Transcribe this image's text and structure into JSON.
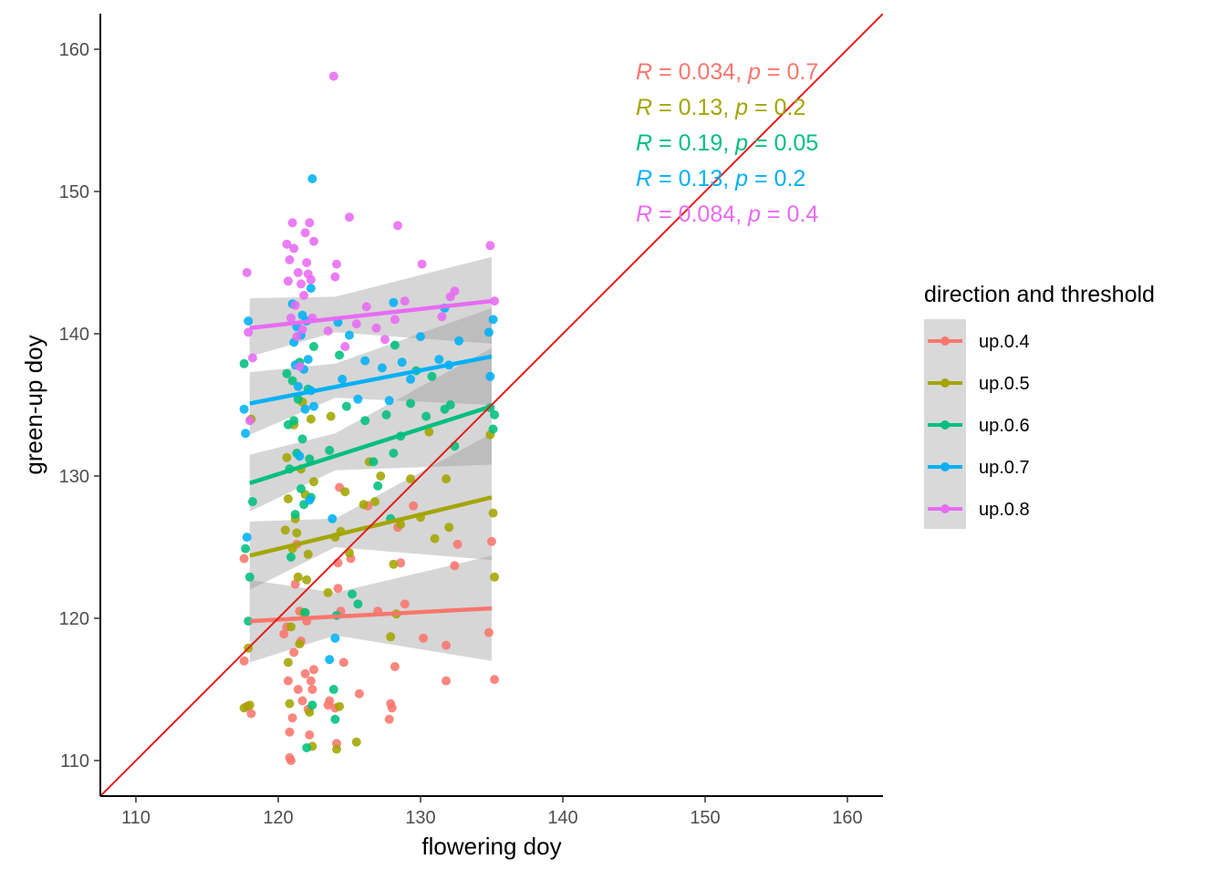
{
  "chart_data": {
    "type": "scatter",
    "title": "",
    "xlabel": "flowering doy",
    "ylabel": "green-up doy",
    "xlim": [
      107.5,
      162.5
    ],
    "ylim": [
      107.5,
      162.5
    ],
    "xticks": [
      "110",
      "120",
      "130",
      "140",
      "150",
      "160"
    ],
    "yticks": [
      "110",
      "120",
      "130",
      "140",
      "150",
      "160"
    ],
    "grid": false,
    "legend": {
      "title": "direction and threshold",
      "placement": "right",
      "entries": [
        "up.0.4",
        "up.0.5",
        "up.0.6",
        "up.0.7",
        "up.0.8"
      ]
    },
    "reference_line": {
      "kind": "identity y = x",
      "color": "#E41A1C"
    },
    "series": [
      {
        "name": "up.0.4",
        "color": "#F8766D",
        "trend": {
          "x": [
            118,
            135
          ],
          "y": [
            119.8,
            120.7
          ],
          "band": [
            [
              118,
              116.9,
              122.7
            ],
            [
              124,
              118.8,
              121.8
            ],
            [
              135,
              117.0,
              124.4
            ]
          ]
        },
        "stats": {
          "R": "0.034",
          "p": "0.7"
        },
        "points": [
          [
            117.6,
            124.2
          ],
          [
            117.6,
            117.0
          ],
          [
            117.8,
            113.8
          ],
          [
            118.1,
            113.3
          ],
          [
            120.4,
            118.9
          ],
          [
            120.6,
            119.4
          ],
          [
            120.7,
            115.6
          ],
          [
            120.8,
            112.0
          ],
          [
            120.8,
            110.2
          ],
          [
            120.9,
            110.0
          ],
          [
            121.0,
            113.0
          ],
          [
            121.1,
            117.6
          ],
          [
            121.2,
            122.4
          ],
          [
            121.3,
            125.2
          ],
          [
            121.4,
            115.0
          ],
          [
            121.5,
            120.5
          ],
          [
            121.6,
            118.4
          ],
          [
            121.7,
            114.2
          ],
          [
            121.9,
            116.1
          ],
          [
            122.0,
            119.8
          ],
          [
            122.1,
            113.6
          ],
          [
            122.2,
            111.8
          ],
          [
            122.3,
            115.6
          ],
          [
            122.4,
            115.0
          ],
          [
            122.5,
            116.4
          ],
          [
            123.5,
            113.9
          ],
          [
            123.6,
            114.2
          ],
          [
            124.0,
            113.7
          ],
          [
            124.1,
            111.2
          ],
          [
            124.2,
            123.9
          ],
          [
            124.2,
            122.1
          ],
          [
            124.3,
            129.2
          ],
          [
            124.4,
            120.5
          ],
          [
            124.6,
            116.9
          ],
          [
            125.1,
            124.2
          ],
          [
            125.7,
            114.7
          ],
          [
            126.3,
            127.9
          ],
          [
            127.0,
            120.5
          ],
          [
            127.8,
            112.9
          ],
          [
            127.9,
            114.0
          ],
          [
            128.0,
            113.7
          ],
          [
            128.2,
            116.6
          ],
          [
            128.4,
            126.4
          ],
          [
            128.6,
            123.9
          ],
          [
            128.9,
            121.0
          ],
          [
            129.5,
            127.9
          ],
          [
            130.2,
            118.6
          ],
          [
            131.8,
            118.1
          ],
          [
            131.8,
            115.6
          ],
          [
            132.4,
            123.7
          ],
          [
            132.6,
            125.2
          ],
          [
            134.8,
            119.0
          ],
          [
            135.0,
            125.4
          ],
          [
            135.2,
            115.7
          ]
        ]
      },
      {
        "name": "up.0.5",
        "color": "#A3A500",
        "trend": {
          "x": [
            118,
            135
          ],
          "y": [
            124.4,
            128.5
          ],
          "band": [
            [
              118,
              122.0,
              126.8
            ],
            [
              124,
              125.0,
              127.0
            ],
            [
              135,
              124.1,
              133.0
            ]
          ]
        },
        "stats": {
          "R": "0.13",
          "p": "0.2"
        },
        "points": [
          [
            117.6,
            113.7
          ],
          [
            117.9,
            117.9
          ],
          [
            118.0,
            113.9
          ],
          [
            118.1,
            134.0
          ],
          [
            120.5,
            126.2
          ],
          [
            120.6,
            131.3
          ],
          [
            120.7,
            128.4
          ],
          [
            120.7,
            116.9
          ],
          [
            120.8,
            114.0
          ],
          [
            120.9,
            119.4
          ],
          [
            121.0,
            124.9
          ],
          [
            121.1,
            133.6
          ],
          [
            121.2,
            127.0
          ],
          [
            121.3,
            126.0
          ],
          [
            121.4,
            122.9
          ],
          [
            121.5,
            118.2
          ],
          [
            121.6,
            130.5
          ],
          [
            121.7,
            135.2
          ],
          [
            121.8,
            120.4
          ],
          [
            121.9,
            128.7
          ],
          [
            122.0,
            122.7
          ],
          [
            122.1,
            124.5
          ],
          [
            122.2,
            113.4
          ],
          [
            122.3,
            134.0
          ],
          [
            122.4,
            111.0
          ],
          [
            122.5,
            129.6
          ],
          [
            123.5,
            121.8
          ],
          [
            123.7,
            134.2
          ],
          [
            124.0,
            125.7
          ],
          [
            124.1,
            110.8
          ],
          [
            124.3,
            113.8
          ],
          [
            124.4,
            126.1
          ],
          [
            124.7,
            128.9
          ],
          [
            125.0,
            124.6
          ],
          [
            125.5,
            111.3
          ],
          [
            126.0,
            128.0
          ],
          [
            126.4,
            131.0
          ],
          [
            126.8,
            128.2
          ],
          [
            127.2,
            130.0
          ],
          [
            127.9,
            118.7
          ],
          [
            128.1,
            123.8
          ],
          [
            128.3,
            120.3
          ],
          [
            128.6,
            126.6
          ],
          [
            129.3,
            129.8
          ],
          [
            130.0,
            127.1
          ],
          [
            130.6,
            133.1
          ],
          [
            131.0,
            125.6
          ],
          [
            131.8,
            129.8
          ],
          [
            132.0,
            126.4
          ],
          [
            134.9,
            132.9
          ],
          [
            135.1,
            127.4
          ],
          [
            135.2,
            122.9
          ]
        ]
      },
      {
        "name": "up.0.6",
        "color": "#00BF7D",
        "trend": {
          "x": [
            118,
            135
          ],
          "y": [
            129.5,
            134.9
          ],
          "band": [
            [
              118,
              127.5,
              131.5
            ],
            [
              124,
              130.4,
              133.0
            ],
            [
              135,
              130.8,
              139.0
            ]
          ]
        },
        "stats": {
          "R": "0.19",
          "p": "0.05"
        },
        "points": [
          [
            117.6,
            137.9
          ],
          [
            117.7,
            124.9
          ],
          [
            117.9,
            119.8
          ],
          [
            118.0,
            122.9
          ],
          [
            118.2,
            128.2
          ],
          [
            120.6,
            137.2
          ],
          [
            120.7,
            133.6
          ],
          [
            120.8,
            130.5
          ],
          [
            120.9,
            124.3
          ],
          [
            121.0,
            136.7
          ],
          [
            121.1,
            133.9
          ],
          [
            121.2,
            127.3
          ],
          [
            121.3,
            131.6
          ],
          [
            121.4,
            135.4
          ],
          [
            121.5,
            138.0
          ],
          [
            121.6,
            129.1
          ],
          [
            121.7,
            132.6
          ],
          [
            121.8,
            128.0
          ],
          [
            121.9,
            120.4
          ],
          [
            122.0,
            110.9
          ],
          [
            122.1,
            136.1
          ],
          [
            122.2,
            131.2
          ],
          [
            122.3,
            128.5
          ],
          [
            122.4,
            113.9
          ],
          [
            122.5,
            139.1
          ],
          [
            123.6,
            131.8
          ],
          [
            123.9,
            115.0
          ],
          [
            124.0,
            112.9
          ],
          [
            124.1,
            120.2
          ],
          [
            124.3,
            138.5
          ],
          [
            124.8,
            134.9
          ],
          [
            125.2,
            121.7
          ],
          [
            125.6,
            121.0
          ],
          [
            126.1,
            133.9
          ],
          [
            126.7,
            131.0
          ],
          [
            127.0,
            129.3
          ],
          [
            127.6,
            134.3
          ],
          [
            127.9,
            127.0
          ],
          [
            128.1,
            131.6
          ],
          [
            128.2,
            139.2
          ],
          [
            128.6,
            132.8
          ],
          [
            129.3,
            135.1
          ],
          [
            129.7,
            137.4
          ],
          [
            130.4,
            134.2
          ],
          [
            130.8,
            137.0
          ],
          [
            131.7,
            134.7
          ],
          [
            132.1,
            135.0
          ],
          [
            132.4,
            132.1
          ],
          [
            134.9,
            134.8
          ],
          [
            135.1,
            133.3
          ],
          [
            135.2,
            134.3
          ]
        ]
      },
      {
        "name": "up.0.7",
        "color": "#00B0F6",
        "trend": {
          "x": [
            118,
            135
          ],
          "y": [
            135.1,
            138.4
          ],
          "band": [
            [
              118,
              132.9,
              137.3
            ],
            [
              124,
              135.5,
              137.9
            ],
            [
              135,
              135.0,
              141.8
            ]
          ]
        },
        "stats": {
          "R": "0.13",
          "p": "0.2"
        },
        "points": [
          [
            117.6,
            134.7
          ],
          [
            117.7,
            133.0
          ],
          [
            117.8,
            125.7
          ],
          [
            117.9,
            140.9
          ],
          [
            121.0,
            142.1
          ],
          [
            121.1,
            139.4
          ],
          [
            121.2,
            137.8
          ],
          [
            121.3,
            140.5
          ],
          [
            121.4,
            136.3
          ],
          [
            121.5,
            131.4
          ],
          [
            121.6,
            139.9
          ],
          [
            121.7,
            141.3
          ],
          [
            121.8,
            137.5
          ],
          [
            121.9,
            134.7
          ],
          [
            122.0,
            140.9
          ],
          [
            122.1,
            138.2
          ],
          [
            122.2,
            128.3
          ],
          [
            122.3,
            136.0
          ],
          [
            122.3,
            143.2
          ],
          [
            122.4,
            150.9
          ],
          [
            122.5,
            134.9
          ],
          [
            123.6,
            117.1
          ],
          [
            123.8,
            127.0
          ],
          [
            124.0,
            118.6
          ],
          [
            124.2,
            140.8
          ],
          [
            124.5,
            136.8
          ],
          [
            125.0,
            139.9
          ],
          [
            125.6,
            135.4
          ],
          [
            126.1,
            138.1
          ],
          [
            127.3,
            137.6
          ],
          [
            127.8,
            135.3
          ],
          [
            128.1,
            142.2
          ],
          [
            128.7,
            138.0
          ],
          [
            129.3,
            136.8
          ],
          [
            130.0,
            139.8
          ],
          [
            131.3,
            138.2
          ],
          [
            131.7,
            141.8
          ],
          [
            132.0,
            137.8
          ],
          [
            132.7,
            139.5
          ],
          [
            134.8,
            140.1
          ],
          [
            134.9,
            137.0
          ],
          [
            135.1,
            141.0
          ]
        ]
      },
      {
        "name": "up.0.8",
        "color": "#E76BF3",
        "trend": {
          "x": [
            118,
            135
          ],
          "y": [
            140.4,
            142.3
          ],
          "band": [
            [
              118,
              138.4,
              142.5
            ],
            [
              124,
              140.1,
              142.6
            ],
            [
              135,
              139.3,
              145.4
            ]
          ]
        },
        "stats": {
          "R": "0.084",
          "p": "0.4"
        },
        "points": [
          [
            117.8,
            144.3
          ],
          [
            117.9,
            140.1
          ],
          [
            118.0,
            133.9
          ],
          [
            118.2,
            138.3
          ],
          [
            120.6,
            146.3
          ],
          [
            120.7,
            143.7
          ],
          [
            120.8,
            145.2
          ],
          [
            120.9,
            141.1
          ],
          [
            121.0,
            147.8
          ],
          [
            121.1,
            146.0
          ],
          [
            121.2,
            142.0
          ],
          [
            121.3,
            139.8
          ],
          [
            121.4,
            144.3
          ],
          [
            121.5,
            137.7
          ],
          [
            121.6,
            143.5
          ],
          [
            121.7,
            140.3
          ],
          [
            121.8,
            142.7
          ],
          [
            121.9,
            147.1
          ],
          [
            122.0,
            145.0
          ],
          [
            122.1,
            144.2
          ],
          [
            122.2,
            147.8
          ],
          [
            122.3,
            143.8
          ],
          [
            122.4,
            141.1
          ],
          [
            122.5,
            146.5
          ],
          [
            123.5,
            140.2
          ],
          [
            123.9,
            158.1
          ],
          [
            124.0,
            144.0
          ],
          [
            124.1,
            144.9
          ],
          [
            124.7,
            139.1
          ],
          [
            125.0,
            148.2
          ],
          [
            125.5,
            140.7
          ],
          [
            126.2,
            141.9
          ],
          [
            126.9,
            140.4
          ],
          [
            127.5,
            139.6
          ],
          [
            128.2,
            141.0
          ],
          [
            128.4,
            147.6
          ],
          [
            128.9,
            142.3
          ],
          [
            130.1,
            144.9
          ],
          [
            131.5,
            141.2
          ],
          [
            132.1,
            142.6
          ],
          [
            132.4,
            143.0
          ],
          [
            134.9,
            146.2
          ],
          [
            135.2,
            142.3
          ]
        ]
      }
    ]
  }
}
